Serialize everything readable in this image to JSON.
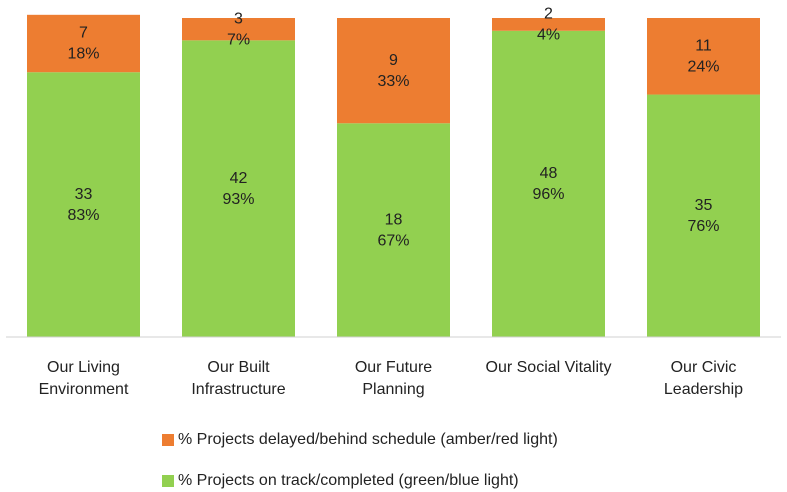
{
  "chart_data": {
    "type": "stacked_bar",
    "categories": [
      [
        "Our Living",
        "Environment"
      ],
      [
        "Our Built",
        "Infrastructure"
      ],
      [
        "Our Future",
        "Planning"
      ],
      [
        "Our Social Vitality"
      ],
      [
        "Our Civic",
        "Leadership"
      ]
    ],
    "series": [
      {
        "name": "% Projects on track/completed (green/blue light)",
        "color": "#92d050",
        "values": [
          83,
          93,
          67,
          96,
          76
        ],
        "value_labels": [
          "83%",
          "93%",
          "67%",
          "96%",
          "76%"
        ],
        "counts": [
          33,
          42,
          18,
          48,
          35
        ]
      },
      {
        "name": "% Projects delayed/behind schedule (amber/red light)",
        "color": "#ed7d31",
        "values": [
          18,
          7,
          33,
          4,
          24
        ],
        "value_labels": [
          "18%",
          "7%",
          "33%",
          "4%",
          "24%"
        ],
        "counts": [
          7,
          3,
          9,
          2,
          11
        ]
      }
    ],
    "ylim": [
      0,
      100
    ]
  }
}
